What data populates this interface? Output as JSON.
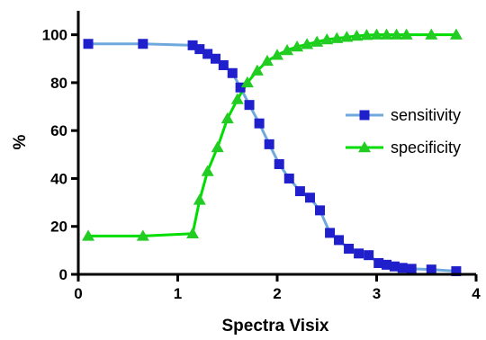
{
  "chart_data": {
    "type": "line",
    "title": "",
    "xlabel": "Spectra Visix",
    "ylabel": "%",
    "xlim": [
      0,
      4
    ],
    "ylim": [
      0,
      110
    ],
    "x_ticks": [
      "0",
      "1",
      "2",
      "3",
      "4"
    ],
    "y_ticks": [
      "0",
      "20",
      "40",
      "60",
      "80",
      "100"
    ],
    "grid": false,
    "legend_position": "right",
    "series": [
      {
        "name": "sensitivity",
        "color": "#6fa8dc",
        "marker_color": "#1f1fcc",
        "marker": "square",
        "points": [
          [
            0.1,
            96.2
          ],
          [
            0.65,
            96.2
          ],
          [
            1.15,
            95.6
          ],
          [
            1.22,
            94.0
          ],
          [
            1.3,
            92.0
          ],
          [
            1.38,
            90.0
          ],
          [
            1.46,
            87.3
          ],
          [
            1.55,
            84.0
          ],
          [
            1.63,
            78.0
          ],
          [
            1.72,
            70.7
          ],
          [
            1.82,
            63.0
          ],
          [
            1.92,
            54.3
          ],
          [
            2.02,
            46.0
          ],
          [
            2.12,
            40.0
          ],
          [
            2.23,
            34.7
          ],
          [
            2.33,
            32.0
          ],
          [
            2.43,
            26.7
          ],
          [
            2.53,
            17.3
          ],
          [
            2.62,
            14.3
          ],
          [
            2.72,
            10.7
          ],
          [
            2.82,
            8.7
          ],
          [
            2.92,
            8.0
          ],
          [
            3.02,
            4.7
          ],
          [
            3.1,
            4.0
          ],
          [
            3.18,
            3.3
          ],
          [
            3.26,
            2.7
          ],
          [
            3.35,
            2.3
          ],
          [
            3.55,
            2.0
          ],
          [
            3.8,
            1.3
          ]
        ]
      },
      {
        "name": "specificity",
        "color": "#00dd00",
        "marker_color": "#22cc22",
        "marker": "triangle",
        "points": [
          [
            0.1,
            16.0
          ],
          [
            0.65,
            16.0
          ],
          [
            1.15,
            17.0
          ],
          [
            1.22,
            31.0
          ],
          [
            1.3,
            43.0
          ],
          [
            1.4,
            53.0
          ],
          [
            1.5,
            65.0
          ],
          [
            1.6,
            73.0
          ],
          [
            1.7,
            80.0
          ],
          [
            1.8,
            85.0
          ],
          [
            1.9,
            89.0
          ],
          [
            2.0,
            91.5
          ],
          [
            2.1,
            93.5
          ],
          [
            2.2,
            95.0
          ],
          [
            2.3,
            96.0
          ],
          [
            2.4,
            97.0
          ],
          [
            2.5,
            98.0
          ],
          [
            2.6,
            98.5
          ],
          [
            2.7,
            99.0
          ],
          [
            2.8,
            99.5
          ],
          [
            2.9,
            99.8
          ],
          [
            3.0,
            100.0
          ],
          [
            3.1,
            100.0
          ],
          [
            3.2,
            100.0
          ],
          [
            3.3,
            100.0
          ],
          [
            3.55,
            100.0
          ],
          [
            3.8,
            100.0
          ]
        ]
      }
    ]
  }
}
